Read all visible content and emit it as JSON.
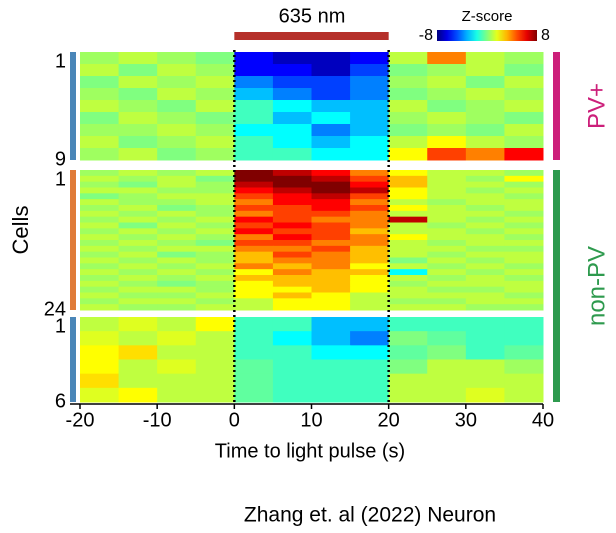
{
  "chart_data": {
    "type": "heatmap",
    "xlabel": "Time to light pulse  (s)",
    "ylabel": "Cells",
    "xlim": [
      -20,
      40
    ],
    "xticks": [
      -20,
      -10,
      0,
      10,
      20,
      30,
      40
    ],
    "bins": [
      -20,
      -15,
      -10,
      -5,
      0,
      5,
      10,
      15,
      20,
      25,
      30,
      35,
      40
    ],
    "markers": [
      0,
      20
    ],
    "stimulus": {
      "label": "635 nm",
      "range": [
        0,
        20
      ],
      "color": "#b5302a"
    },
    "colorbar": {
      "label": "Z-score",
      "lim": [
        -8,
        8
      ],
      "ticks": [
        -8,
        8
      ]
    },
    "panels": [
      {
        "side_color": "#4a86b8",
        "row_ticks": [
          1,
          9
        ],
        "values": [
          [
            0.5,
            1,
            0.5,
            0,
            -6,
            -7,
            -7,
            -6,
            1,
            4,
            1,
            0.5
          ],
          [
            1,
            0,
            1,
            0.5,
            -6,
            -6,
            -7,
            -5,
            0,
            0.5,
            1,
            0
          ],
          [
            0,
            1,
            0.5,
            1,
            -4,
            -5,
            -5,
            -4,
            0.5,
            1,
            0,
            1
          ],
          [
            0.5,
            0,
            1,
            0.5,
            -3,
            -4,
            -5,
            -4,
            0,
            0.5,
            1,
            0.5
          ],
          [
            1,
            0.5,
            0,
            1,
            -1,
            -2,
            -3,
            -3,
            1,
            0,
            0.5,
            1
          ],
          [
            0,
            1,
            0.5,
            0,
            -1,
            -3,
            -2,
            -3,
            0.5,
            1,
            0.5,
            0
          ],
          [
            0.5,
            0.5,
            1,
            0.5,
            -2,
            -2,
            -4,
            -3,
            0,
            0.5,
            0,
            1
          ],
          [
            1,
            0,
            0.5,
            1,
            -1,
            -2,
            -3,
            -2,
            1,
            2,
            1,
            0.5
          ],
          [
            0.5,
            1,
            0,
            0.5,
            -1,
            -1,
            -2,
            -2,
            2,
            5,
            4,
            6
          ]
        ]
      },
      {
        "side_color": "#e07b39",
        "row_ticks": [
          1,
          24
        ],
        "values": [
          [
            0.5,
            1,
            0.5,
            1,
            8,
            7,
            6,
            4,
            2,
            1,
            1,
            0.5
          ],
          [
            1,
            0.5,
            1,
            0,
            8,
            8,
            7,
            5,
            3,
            1,
            0.5,
            2
          ],
          [
            0.5,
            0,
            1,
            0.5,
            7,
            8,
            8,
            6,
            3,
            1,
            1,
            0.5
          ],
          [
            1,
            1,
            0.5,
            0.5,
            6,
            7,
            8,
            7,
            2,
            1,
            0.5,
            1
          ],
          [
            0,
            0.5,
            1,
            1,
            5,
            6,
            7,
            5,
            2,
            1,
            1,
            0.5
          ],
          [
            1,
            0.5,
            0.5,
            1,
            4,
            6,
            6,
            4,
            1,
            0.5,
            1,
            1
          ],
          [
            0.5,
            1,
            0,
            0.5,
            5,
            5,
            6,
            5,
            2,
            1,
            0.5,
            1
          ],
          [
            1,
            0.5,
            1,
            0.5,
            4,
            5,
            5,
            4,
            1,
            1,
            1,
            0.5
          ],
          [
            0.5,
            1,
            0.5,
            1,
            6,
            5,
            4,
            4,
            7,
            1,
            0.5,
            1
          ],
          [
            1,
            0,
            1,
            0.5,
            5,
            6,
            5,
            4,
            1,
            0.5,
            1,
            0.5
          ],
          [
            0.5,
            1,
            0.5,
            1,
            6,
            5,
            5,
            3,
            1,
            1,
            0.5,
            1
          ],
          [
            1,
            0.5,
            1,
            0.5,
            4,
            6,
            5,
            4,
            2,
            1,
            1,
            0.5
          ],
          [
            0.5,
            1,
            0.5,
            0,
            5,
            5,
            4,
            4,
            1,
            0.5,
            1,
            1
          ],
          [
            1,
            0.5,
            1,
            1,
            4,
            4,
            5,
            3,
            1,
            1,
            0.5,
            0.5
          ],
          [
            0.5,
            1,
            0,
            0.5,
            3,
            5,
            4,
            3,
            1,
            0.5,
            1,
            1
          ],
          [
            1,
            0.5,
            1,
            0.5,
            3,
            4,
            4,
            3,
            0,
            1,
            0.5,
            1
          ],
          [
            0.5,
            1,
            0.5,
            1,
            4,
            3,
            4,
            2,
            1,
            0.5,
            1,
            0.5
          ],
          [
            1,
            0.5,
            1,
            0.5,
            2,
            4,
            3,
            3,
            -2,
            1,
            0.5,
            1
          ],
          [
            0.5,
            1,
            0.5,
            1,
            3,
            3,
            3,
            2,
            1,
            0.5,
            1,
            0.5
          ],
          [
            1,
            0.5,
            0,
            0.5,
            2,
            3,
            3,
            2,
            0.5,
            1,
            1,
            1
          ],
          [
            0.5,
            1,
            1,
            0.5,
            2,
            2,
            3,
            2,
            1,
            0.5,
            0.5,
            1
          ],
          [
            1,
            0.5,
            0.5,
            1,
            2,
            3,
            2,
            1,
            1,
            1,
            1,
            0.5
          ],
          [
            0.5,
            1,
            1,
            0.5,
            1,
            2,
            2,
            1,
            0.5,
            0.5,
            1,
            1
          ],
          [
            1,
            0.5,
            0.5,
            1,
            1,
            2,
            2,
            1,
            1,
            1,
            0.5,
            0.5
          ]
        ]
      },
      {
        "side_color": "#4a86b8",
        "row_ticks": [
          1,
          6
        ],
        "values": [
          [
            1,
            1.5,
            1,
            2,
            -1,
            -1,
            -3,
            -3,
            -1,
            -1,
            -1,
            -1
          ],
          [
            1.5,
            1,
            1.5,
            1,
            -1,
            -2,
            -3,
            -4,
            0,
            -0.5,
            -1,
            -1
          ],
          [
            2,
            2.5,
            1,
            1,
            -1,
            -1,
            -2,
            -2,
            -0.5,
            0,
            -1,
            -0.5
          ],
          [
            2,
            1,
            1.5,
            1,
            -0.5,
            -1,
            -1,
            -1,
            0,
            1,
            1,
            0.5
          ],
          [
            2.5,
            1,
            1,
            1,
            -0.5,
            -1,
            -1,
            -1,
            1,
            1,
            1,
            1
          ],
          [
            1.5,
            2,
            1,
            1,
            -0.5,
            -1,
            -1,
            -1,
            1,
            1,
            1.5,
            1
          ]
        ]
      }
    ],
    "groups": [
      {
        "name": "PV+",
        "color": "#cc1f7a",
        "panels": [
          0,
          0
        ]
      },
      {
        "name": "non-PV",
        "color": "#2e9a4e",
        "panels": [
          1,
          2
        ]
      }
    ],
    "caption": "Zhang et. al (2022) Neuron"
  }
}
